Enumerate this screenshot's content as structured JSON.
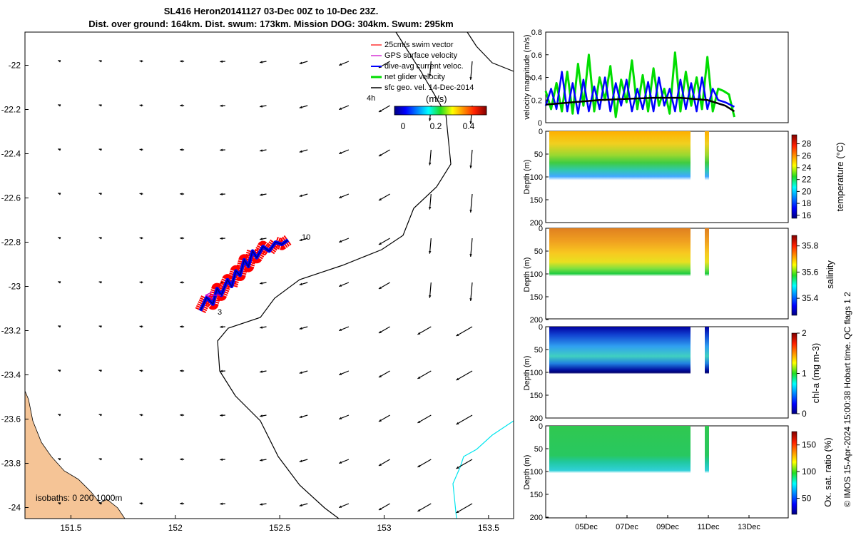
{
  "header": {
    "title_line1": "SL416 Heron20141127 03-Dec 00Z to 10-Dec 23Z.",
    "title_line2": "Dist. over ground: 164km. Dist. swum: 173km. Mission DOG: 304km. Swum: 295km"
  },
  "colors": {
    "swim_vector": "#ff0000",
    "gps_velocity": "#cc00cc",
    "dive_avg": "#0000ff",
    "net_glider": "#00dd00",
    "sfc_geo": "#000000",
    "land": "#f5c496",
    "isobath_200": "#000000",
    "isobath_1000": "#00e5ee"
  },
  "chart_data": [
    {
      "id": "map",
      "type": "scatter",
      "title": "",
      "xlabel": "",
      "ylabel": "",
      "xlim": [
        151.28,
        153.62
      ],
      "ylim": [
        -24.05,
        -21.85
      ],
      "xticks": [
        151.5,
        152,
        152.5,
        153,
        153.5
      ],
      "xticklabels": [
        "151.5",
        "152",
        "152.5",
        "153",
        "153.5"
      ],
      "yticks": [
        -22,
        -22.2,
        -22.4,
        -22.6,
        -22.8,
        -23,
        -23.2,
        -23.4,
        -23.6,
        -23.8,
        -24
      ],
      "yticklabels": [
        "-22",
        "-22.2",
        "-22.4",
        "-22.6",
        "-22.8",
        "-23",
        "-23.2",
        "-23.4",
        "-23.6",
        "-23.8",
        "-24"
      ],
      "legend": {
        "position": "top-right",
        "entries": [
          {
            "label": "25cm/s swim vector",
            "color": "#ff0000"
          },
          {
            "label": "GPS surface velocity",
            "color": "#cc00cc"
          },
          {
            "label": "dive-avg current veloc.",
            "color": "#0000ff"
          },
          {
            "label": "net glider velocity",
            "color": "#00dd00"
          },
          {
            "label": "sfc geo. vel. 14-Dec-2014",
            "color": "#000000"
          }
        ]
      },
      "colorbar": {
        "label": "(m/s)",
        "ticklabels": [
          "0",
          "0.2",
          "0.4"
        ],
        "range": [
          0,
          0.5
        ]
      },
      "time_label": "4h",
      "annotations": [
        "10",
        "3"
      ],
      "isobath_label": "isobaths: 0   200  1000m",
      "glider_track": {
        "lon": [
          152.12,
          152.15,
          152.18,
          152.2,
          152.22,
          152.25,
          152.27,
          152.29,
          152.31,
          152.33,
          152.35,
          152.37,
          152.39,
          152.42,
          152.45,
          152.48,
          152.51,
          152.54
        ],
        "lat": [
          -23.11,
          -23.05,
          -23.08,
          -23.01,
          -23.04,
          -22.97,
          -23.0,
          -22.93,
          -22.95,
          -22.88,
          -22.91,
          -22.84,
          -22.87,
          -22.82,
          -22.84,
          -22.8,
          -22.81,
          -22.79
        ]
      }
    },
    {
      "id": "velocity",
      "type": "line",
      "ylabel": "velocity magnitude (m/s)",
      "ylim": [
        0,
        0.8
      ],
      "yticklabels": [
        "0",
        "0.2",
        "0.4",
        "0.6",
        "0.8"
      ],
      "xlim": [
        0,
        13.5
      ],
      "series": [
        {
          "name": "net glider velocity",
          "color": "#00dd00",
          "x": [
            0,
            0.3,
            0.6,
            0.9,
            1.2,
            1.5,
            1.8,
            2.1,
            2.4,
            2.7,
            3.0,
            3.3,
            3.6,
            3.9,
            4.2,
            4.5,
            4.8,
            5.1,
            5.4,
            5.7,
            6.0,
            6.3,
            6.6,
            6.9,
            7.2,
            7.5,
            7.8,
            8.1,
            8.4,
            8.7,
            9.0,
            9.3,
            9.6,
            9.9,
            10.2,
            10.5
          ],
          "y": [
            0.28,
            0.12,
            0.35,
            0.1,
            0.45,
            0.08,
            0.52,
            0.15,
            0.6,
            0.1,
            0.4,
            0.2,
            0.5,
            0.05,
            0.38,
            0.18,
            0.55,
            0.12,
            0.42,
            0.1,
            0.48,
            0.15,
            0.3,
            0.08,
            0.62,
            0.1,
            0.45,
            0.15,
            0.4,
            0.12,
            0.58,
            0.1,
            0.3,
            0.28,
            0.25,
            0.05
          ]
        },
        {
          "name": "dive-avg current veloc.",
          "color": "#0000ff",
          "x": [
            0,
            0.3,
            0.6,
            0.9,
            1.2,
            1.5,
            1.8,
            2.1,
            2.4,
            2.7,
            3.0,
            3.3,
            3.6,
            3.9,
            4.2,
            4.5,
            4.8,
            5.1,
            5.4,
            5.7,
            6.0,
            6.3,
            6.6,
            6.9,
            7.2,
            7.5,
            7.8,
            8.1,
            8.4,
            8.7,
            9.0,
            9.3,
            9.6,
            10.0,
            10.5
          ],
          "y": [
            0.15,
            0.3,
            0.12,
            0.45,
            0.1,
            0.35,
            0.08,
            0.38,
            0.1,
            0.32,
            0.12,
            0.4,
            0.1,
            0.35,
            0.15,
            0.38,
            0.1,
            0.3,
            0.12,
            0.36,
            0.1,
            0.4,
            0.15,
            0.3,
            0.1,
            0.38,
            0.12,
            0.35,
            0.1,
            0.4,
            0.12,
            0.3,
            0.2,
            0.18,
            0.14
          ]
        },
        {
          "name": "sfc geo. vel. 14-Dec-2014",
          "color": "#000000",
          "x": [
            0,
            1.5,
            3,
            4.5,
            6,
            7.5,
            9,
            10,
            10.5
          ],
          "y": [
            0.16,
            0.18,
            0.2,
            0.21,
            0.22,
            0.22,
            0.2,
            0.15,
            0.1
          ]
        }
      ]
    },
    {
      "id": "temperature",
      "type": "heatmap",
      "ylabel": "Depth (m)",
      "yticklabels": [
        "0",
        "50",
        "100",
        "150",
        "200"
      ],
      "ylim": [
        0,
        200
      ],
      "colorbar_label": "temperature (°C)",
      "colorbar_ticklabels": [
        "16",
        "18",
        "20",
        "22",
        "24",
        "26",
        "28"
      ],
      "colorbar_range": [
        15.5,
        29.5
      ]
    },
    {
      "id": "salinity",
      "type": "heatmap",
      "ylabel": "Depth (m)",
      "yticklabels": [
        "0",
        "50",
        "100",
        "150",
        "200"
      ],
      "ylim": [
        0,
        200
      ],
      "colorbar_label": "salinity",
      "colorbar_ticklabels": [
        "35.4",
        "35.6",
        "35.8"
      ],
      "colorbar_range": [
        35.27,
        35.88
      ]
    },
    {
      "id": "chla",
      "type": "heatmap",
      "ylabel": "Depth (m)",
      "yticklabels": [
        "0",
        "50",
        "100",
        "150",
        "200"
      ],
      "ylim": [
        0,
        200
      ],
      "colorbar_label": "chl-a (mg m-3)",
      "colorbar_ticklabels": [
        "0",
        "1",
        "2"
      ],
      "colorbar_range": [
        0,
        2
      ]
    },
    {
      "id": "oxygen",
      "type": "heatmap",
      "ylabel": "Depth (m)",
      "yticklabels": [
        "0",
        "50",
        "100",
        "150",
        "200"
      ],
      "ylim": [
        0,
        200
      ],
      "colorbar_label": "Ox. sat. ratio (%)",
      "colorbar_ticklabels": [
        "50",
        "100",
        "150"
      ],
      "colorbar_range": [
        20,
        175
      ],
      "xticklabels": [
        "05Dec",
        "07Dec",
        "09Dec",
        "11Dec",
        "13Dec"
      ]
    }
  ],
  "credit": "© IMOS 15-Apr-2024 15:00:38 Hobart time. QC flags 1  2"
}
